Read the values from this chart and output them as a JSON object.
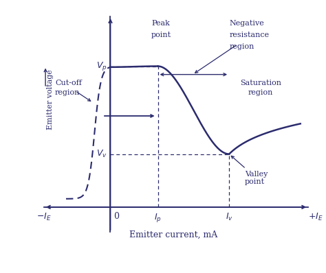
{
  "color": "#2b2b6e",
  "bg_color": "#ffffff",
  "xlabel": "Emitter current, mA",
  "ylabel_top": "Emitter voltage",
  "ylabel_arrow": "→",
  "fig_width": 4.74,
  "fig_height": 3.98,
  "dpi": 100,
  "peak_x": 3.0,
  "peak_y": 8.5,
  "valley_x": 7.5,
  "valley_y": 3.2,
  "xlim": [
    -4.5,
    13.0
  ],
  "ylim": [
    -2.0,
    12.0
  ],
  "x_origin": 0.0,
  "y_origin": 0.0
}
